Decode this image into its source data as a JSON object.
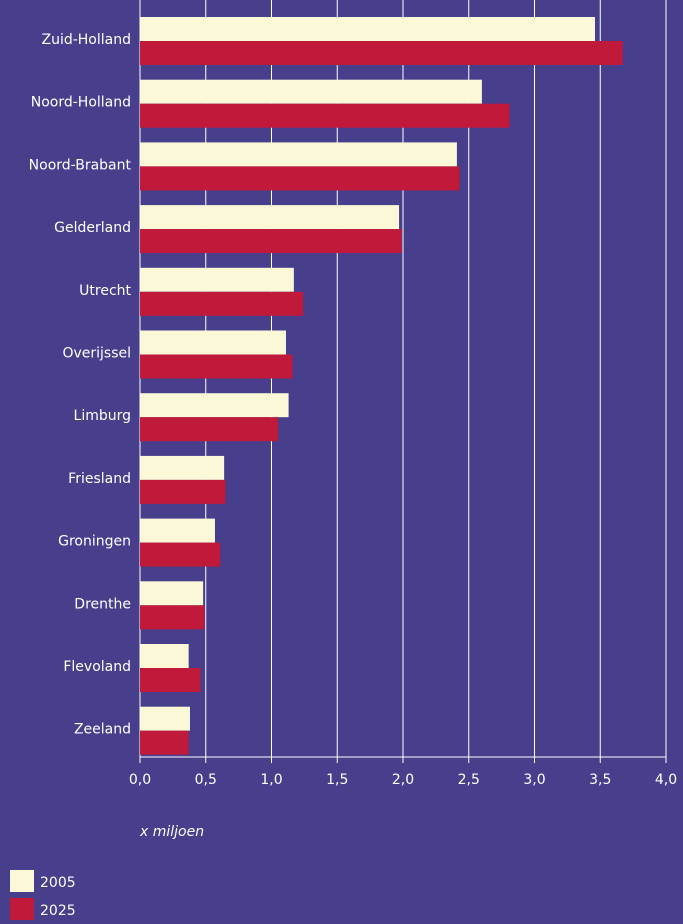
{
  "chart_data": {
    "type": "hbar",
    "categories": [
      "Zuid-Holland",
      "Noord-Holland",
      "Noord-Brabant",
      "Gelderland",
      "Utrecht",
      "Overijssel",
      "Limburg",
      "Friesland",
      "Groningen",
      "Drenthe",
      "Flevoland",
      "Zeeland"
    ],
    "series": [
      {
        "name": "2005",
        "color": "#fbf8d7",
        "values": [
          3.46,
          2.6,
          2.41,
          1.97,
          1.17,
          1.11,
          1.13,
          0.64,
          0.57,
          0.48,
          0.37,
          0.38
        ]
      },
      {
        "name": "2025",
        "color": "#c0193a",
        "values": [
          3.67,
          2.81,
          2.43,
          1.99,
          1.24,
          1.16,
          1.05,
          0.65,
          0.61,
          0.49,
          0.46,
          0.37
        ]
      }
    ],
    "xlabel": "x miljoen",
    "xlim": [
      0,
      4
    ],
    "xticks": [
      {
        "value": 0,
        "label": "0,0"
      },
      {
        "value": 0.5,
        "label": "0,5"
      },
      {
        "value": 1,
        "label": "1,0"
      },
      {
        "value": 1.5,
        "label": "1,5"
      },
      {
        "value": 2,
        "label": "2,0"
      },
      {
        "value": 2.5,
        "label": "2,5"
      },
      {
        "value": 3,
        "label": "3,0"
      },
      {
        "value": 3.5,
        "label": "3,5"
      },
      {
        "value": 4,
        "label": "4,0"
      }
    ],
    "grid": true,
    "legend": "bottom-left"
  }
}
